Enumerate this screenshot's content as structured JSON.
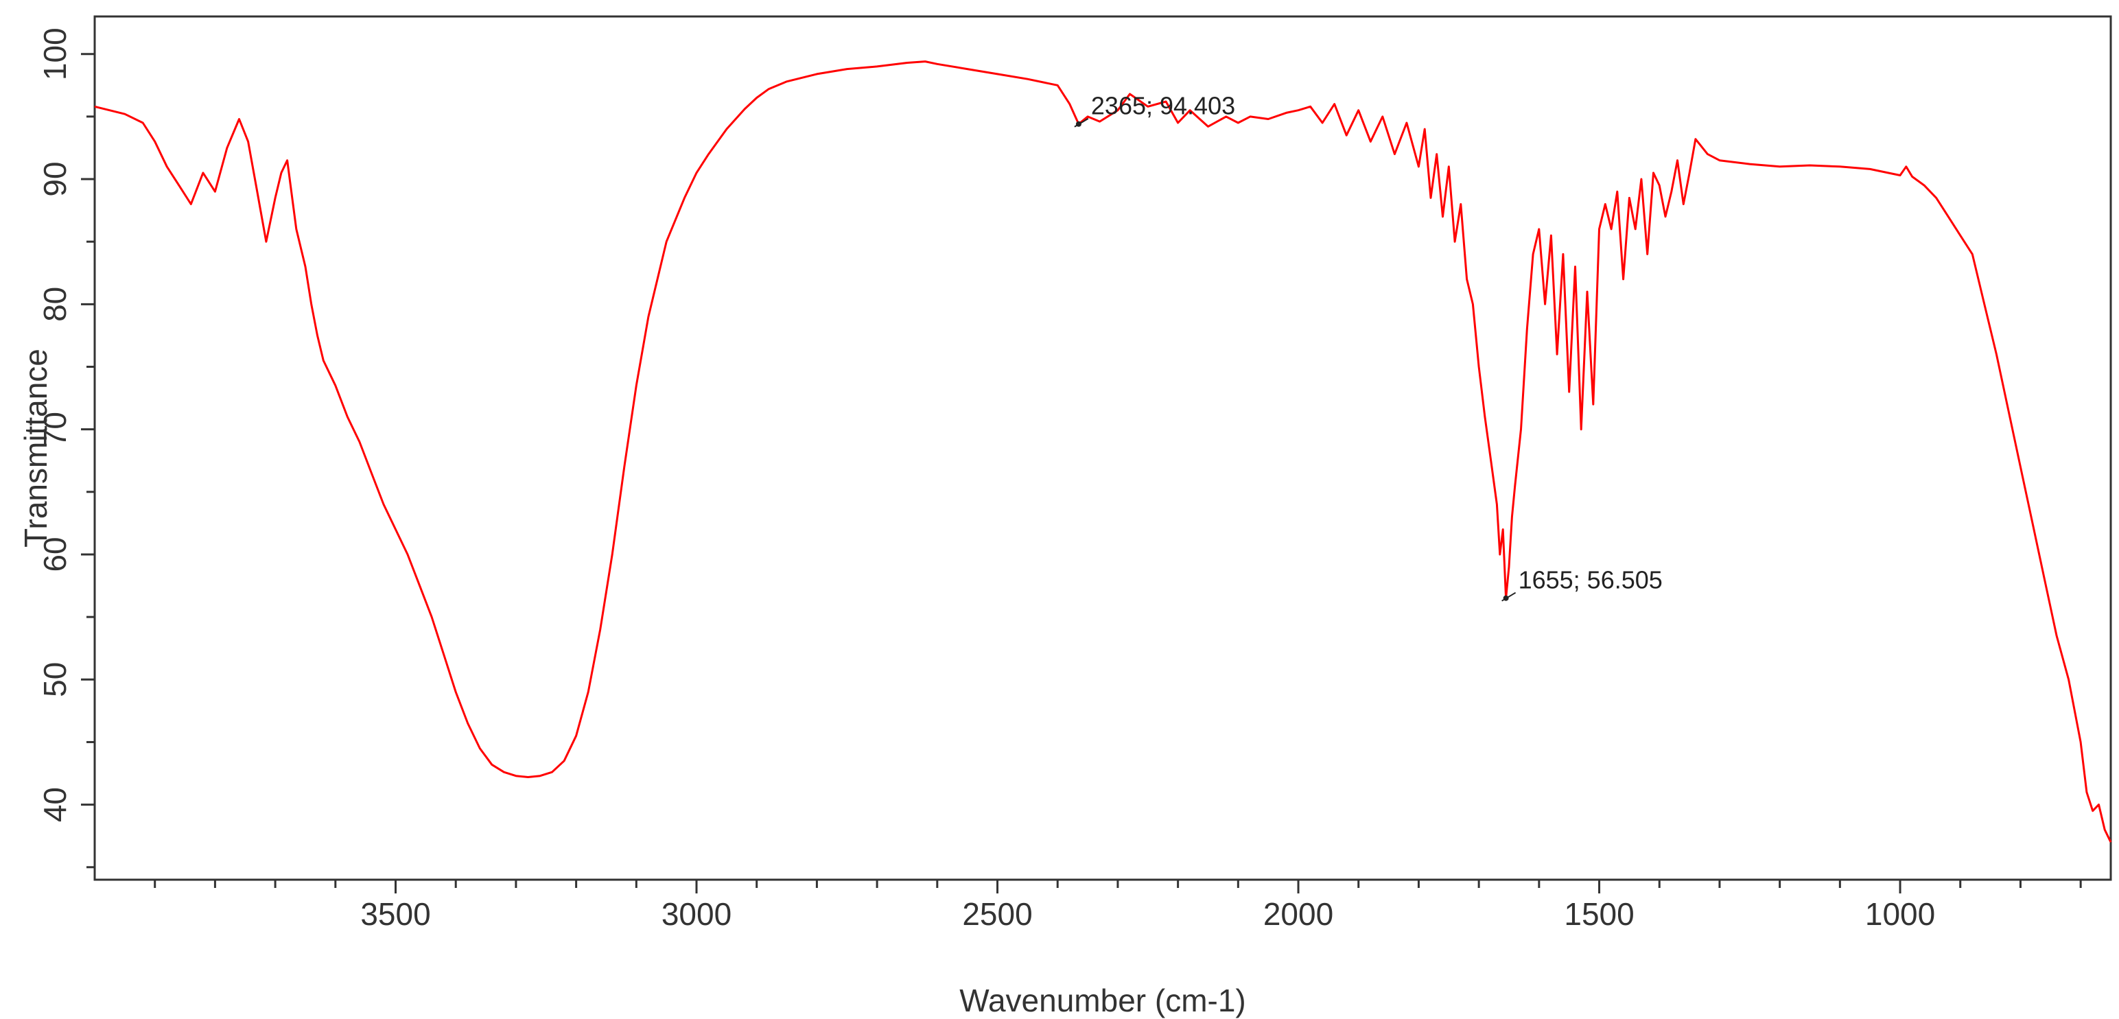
{
  "chart_data": {
    "type": "line",
    "title": "",
    "xlabel": "Wavenumber (cm-1)",
    "ylabel": "Transmittance",
    "x_reversed": true,
    "xlim": [
      4000,
      650
    ],
    "ylim": [
      34,
      103
    ],
    "grid": false,
    "legend": "none",
    "x_ticks": [
      {
        "value": 3500,
        "label": "3500"
      },
      {
        "value": 3000,
        "label": "3000"
      },
      {
        "value": 2500,
        "label": "2500"
      },
      {
        "value": 2000,
        "label": "2000"
      },
      {
        "value": 1500,
        "label": "1500"
      },
      {
        "value": 1000,
        "label": "1000"
      }
    ],
    "x_minor_ticks": [
      3900,
      3800,
      3700,
      3600,
      3400,
      3300,
      3200,
      3100,
      2900,
      2800,
      2700,
      2600,
      2400,
      2300,
      2200,
      2100,
      1900,
      1800,
      1700,
      1600,
      1400,
      1300,
      1200,
      1100,
      900,
      800,
      700
    ],
    "y_ticks": [
      {
        "value": 40,
        "label": "40"
      },
      {
        "value": 50,
        "label": "50"
      },
      {
        "value": 60,
        "label": "60"
      },
      {
        "value": 70,
        "label": "70"
      },
      {
        "value": 80,
        "label": "80"
      },
      {
        "value": 90,
        "label": "90"
      },
      {
        "value": 100,
        "label": "100"
      }
    ],
    "y_minor_ticks": [
      35,
      45,
      55,
      65,
      75,
      85,
      95
    ],
    "series": [
      {
        "color": "#ff0000",
        "x": [
          4000,
          3950,
          3920,
          3900,
          3880,
          3860,
          3840,
          3820,
          3800,
          3780,
          3760,
          3745,
          3730,
          3715,
          3700,
          3690,
          3680,
          3665,
          3650,
          3640,
          3630,
          3620,
          3600,
          3580,
          3560,
          3540,
          3520,
          3500,
          3480,
          3460,
          3440,
          3420,
          3400,
          3380,
          3360,
          3340,
          3320,
          3300,
          3280,
          3260,
          3240,
          3220,
          3200,
          3180,
          3160,
          3140,
          3120,
          3100,
          3080,
          3050,
          3020,
          3000,
          2980,
          2950,
          2920,
          2900,
          2880,
          2850,
          2800,
          2750,
          2700,
          2650,
          2620,
          2600,
          2550,
          2500,
          2450,
          2400,
          2380,
          2365,
          2350,
          2330,
          2300,
          2280,
          2250,
          2220,
          2200,
          2180,
          2150,
          2120,
          2100,
          2080,
          2050,
          2020,
          2000,
          1980,
          1960,
          1940,
          1920,
          1900,
          1880,
          1860,
          1840,
          1820,
          1800,
          1790,
          1780,
          1770,
          1760,
          1750,
          1740,
          1730,
          1720,
          1710,
          1700,
          1690,
          1680,
          1670,
          1665,
          1660,
          1655,
          1650,
          1645,
          1640,
          1630,
          1620,
          1610,
          1600,
          1590,
          1580,
          1570,
          1560,
          1550,
          1540,
          1530,
          1520,
          1510,
          1500,
          1490,
          1480,
          1470,
          1460,
          1450,
          1440,
          1430,
          1420,
          1410,
          1400,
          1390,
          1380,
          1370,
          1360,
          1350,
          1340,
          1320,
          1300,
          1250,
          1200,
          1150,
          1100,
          1050,
          1020,
          1000,
          990,
          980,
          960,
          940,
          920,
          900,
          880,
          860,
          840,
          820,
          800,
          780,
          760,
          740,
          720,
          700,
          690,
          680,
          670,
          660,
          650
        ],
        "y": [
          95.8,
          95.2,
          94.5,
          93.0,
          91.0,
          89.5,
          88.0,
          90.5,
          89.0,
          92.5,
          94.8,
          93.0,
          89.0,
          85.0,
          88.5,
          90.5,
          91.5,
          86.0,
          83.0,
          80.0,
          77.5,
          75.5,
          73.5,
          71.0,
          69.0,
          66.5,
          64.0,
          62.0,
          60.0,
          57.5,
          55.0,
          52.0,
          49.0,
          46.5,
          44.5,
          43.2,
          42.6,
          42.3,
          42.2,
          42.3,
          42.6,
          43.5,
          45.5,
          49.0,
          54.0,
          60.0,
          67.0,
          73.5,
          79.0,
          85.0,
          88.5,
          90.5,
          92.0,
          94.0,
          95.6,
          96.5,
          97.2,
          97.8,
          98.4,
          98.8,
          99.0,
          99.3,
          99.4,
          99.2,
          98.8,
          98.4,
          98.0,
          97.5,
          96.0,
          94.403,
          95.0,
          94.6,
          95.5,
          96.8,
          95.8,
          96.2,
          94.5,
          95.5,
          94.2,
          95.0,
          94.5,
          95.0,
          94.8,
          95.3,
          95.5,
          95.8,
          94.5,
          96.0,
          93.5,
          95.5,
          93.0,
          95.0,
          92.0,
          94.5,
          91.0,
          94.0,
          88.5,
          92.0,
          87.0,
          91.0,
          85.0,
          88.0,
          82.0,
          80.0,
          75.0,
          71.0,
          67.5,
          64.0,
          60.0,
          62.0,
          56.505,
          59.0,
          63.0,
          65.5,
          70.0,
          78.0,
          84.0,
          86.0,
          80.0,
          85.5,
          76.0,
          84.0,
          73.0,
          83.0,
          70.0,
          81.0,
          72.0,
          86.0,
          88.0,
          86.0,
          89.0,
          82.0,
          88.5,
          86.0,
          90.0,
          84.0,
          90.5,
          89.5,
          87.0,
          89.0,
          91.5,
          88.0,
          90.5,
          93.2,
          92.0,
          91.5,
          91.2,
          91.0,
          91.1,
          91.0,
          90.8,
          90.5,
          90.3,
          91.0,
          90.2,
          89.5,
          88.5,
          87.0,
          85.5,
          84.0,
          80.0,
          76.0,
          71.5,
          67.0,
          62.5,
          58.0,
          53.5,
          50.0,
          45.0,
          41.0,
          39.5,
          40.0,
          38.0,
          37.0
        ]
      }
    ],
    "annotations": [
      {
        "x": 2365,
        "y": 94.403,
        "text": "2365; 94.403"
      },
      {
        "x": 1655,
        "y": 56.505,
        "text": "1655; 56.505"
      }
    ]
  }
}
